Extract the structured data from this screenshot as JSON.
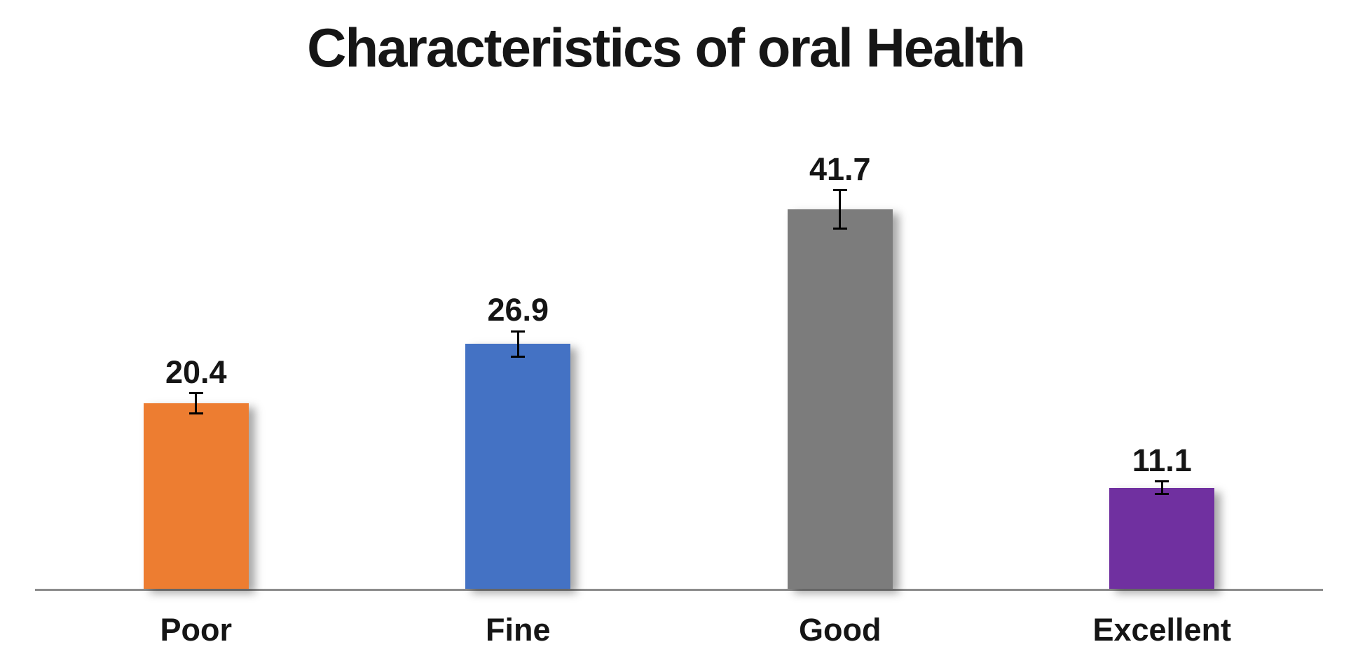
{
  "title": "Characteristics of oral Health",
  "chart_data": {
    "type": "bar",
    "title": "Characteristics of oral Health",
    "categories": [
      "Poor",
      "Fine",
      "Good",
      "Excellent"
    ],
    "values": [
      20.4,
      26.9,
      41.7,
      11.1
    ],
    "data_labels": [
      "20.4",
      "26.9",
      "41.7",
      "11.1"
    ],
    "error_bars": {
      "style": "plus-minus",
      "values": [
        1.1,
        1.4,
        2.1,
        0.7
      ],
      "color": "#000000"
    },
    "bar_colors": [
      "#ED7D31",
      "#4472C4",
      "#7C7C7C",
      "#7030A0"
    ],
    "xlabel": "",
    "ylabel": "",
    "ylim": [
      0,
      45
    ],
    "grid": false,
    "legend": false,
    "axis_line_color": "#8C8C8C",
    "background_color": "#FFFFFF",
    "text_color": "#151515"
  }
}
